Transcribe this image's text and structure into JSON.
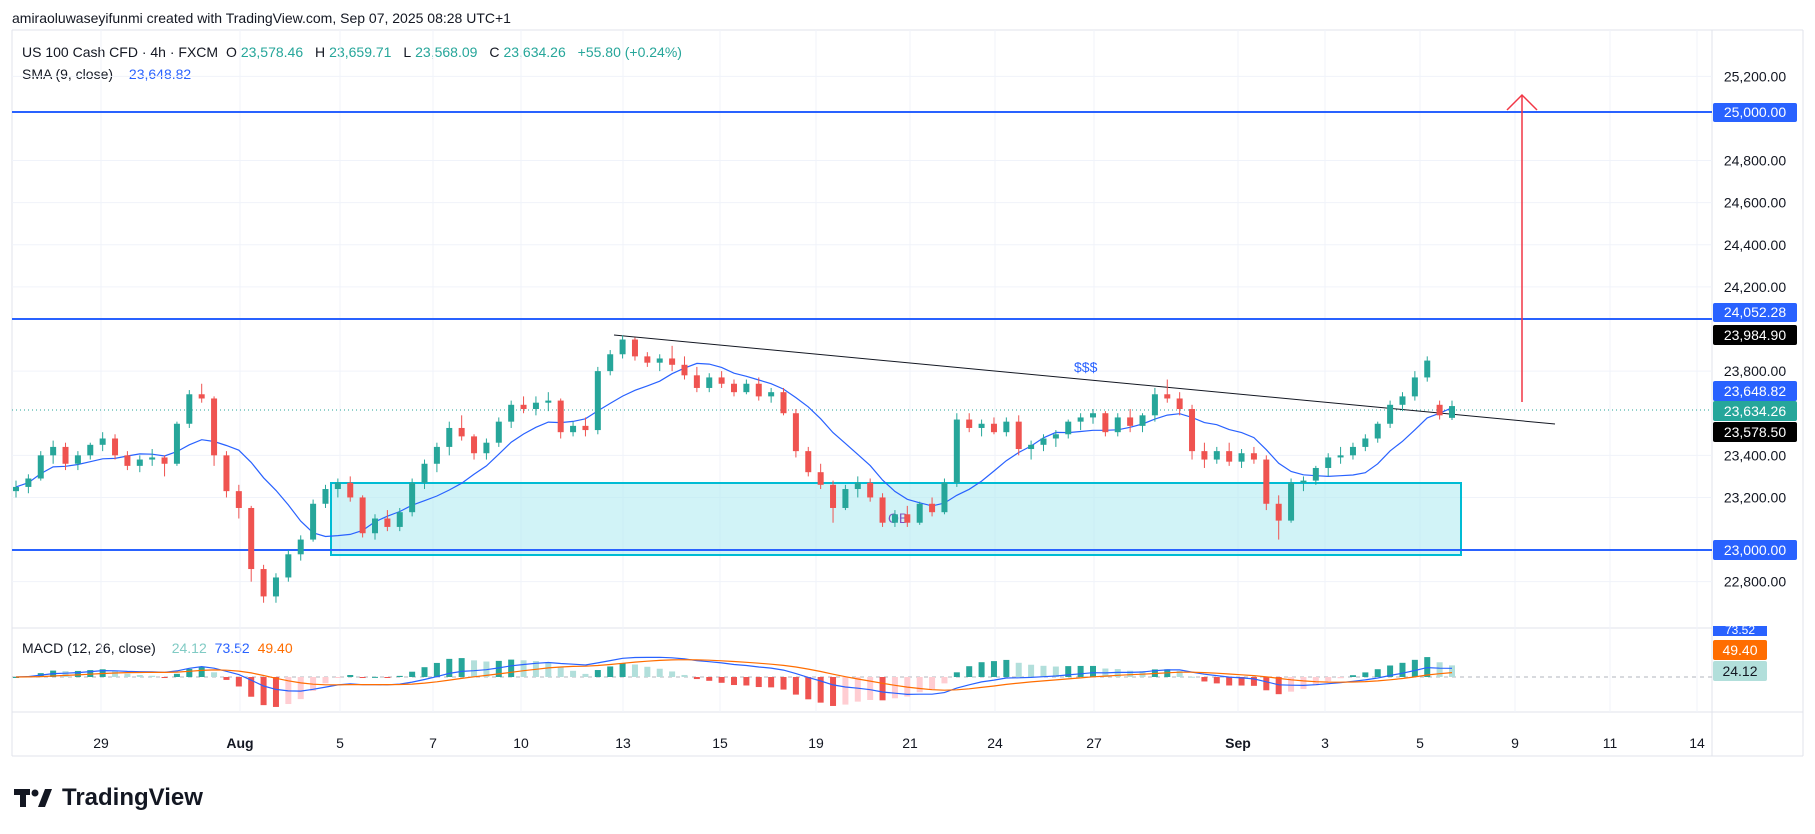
{
  "header": {
    "attribution": "amiraoluwaseyifunmi created with TradingView.com, Sep 07, 2025 08:28 UTC+1"
  },
  "symbol": {
    "name": "US 100 Cash CFD · 4h · FXCM",
    "o_label": "O",
    "o_value": "23,578.46",
    "h_label": "H",
    "h_value": "23,659.71",
    "l_label": "L",
    "l_value": "23,568.09",
    "c_label": "C",
    "c_value": "23,634.26",
    "change": "+55.80 (+0.24%)"
  },
  "sma": {
    "label": "SMA (9, close)",
    "value": "23,648.82"
  },
  "macd": {
    "label": "MACD (12, 26, close)",
    "hist": "24.12",
    "macd": "73.52",
    "signal": "49.40",
    "clipped_label": "73.52"
  },
  "annotations": {
    "liquidity": "$$$",
    "order_block": "OB"
  },
  "colors": {
    "up": "#26a69a",
    "down": "#ef5350",
    "level": "#2962ff",
    "sma": "#2962ff",
    "signal": "#ff6d00",
    "zone": "#b2ebf2",
    "zone_border": "#00bcd4",
    "arrow": "#f23645"
  },
  "price_labels": {
    "level_high": "25,000.00",
    "level_mid": "24,052.28",
    "high_marker": "23,984.90",
    "sma_marker": "23,648.82",
    "last_price": "23,634.26",
    "low_marker": "23,578.50",
    "level_low": "23,000.00"
  },
  "logo": {
    "text": "TradingView",
    "icon": "tradingview-logo-icon"
  },
  "chart_data": {
    "type": "candlestick",
    "yaxis": {
      "ticks": [
        "25,200.00",
        "24,800.00",
        "24,600.00",
        "24,400.00",
        "24,200.00",
        "23,800.00",
        "23,400.00",
        "23,200.00",
        "22,800.00"
      ],
      "ylim": [
        22580,
        25420
      ]
    },
    "xaxis": {
      "ticks": [
        "29",
        "Aug",
        "5",
        "7",
        "10",
        "13",
        "15",
        "19",
        "21",
        "24",
        "27",
        "Sep",
        "3",
        "5",
        "9",
        "11",
        "14"
      ]
    },
    "horizontal_levels": [
      25000,
      24052.28,
      23000
    ],
    "demand_zone": {
      "top": 23300,
      "bottom": 22980
    },
    "trendline": {
      "from": [
        23975
      ],
      "to": [
        23600
      ]
    },
    "target_arrow": {
      "from": 23650,
      "to": 25080
    },
    "candles": [
      [
        23230,
        23280,
        23200,
        23250
      ],
      [
        23250,
        23310,
        23220,
        23290
      ],
      [
        23290,
        23420,
        23280,
        23400
      ],
      [
        23400,
        23470,
        23360,
        23440
      ],
      [
        23440,
        23460,
        23330,
        23360
      ],
      [
        23360,
        23420,
        23330,
        23400
      ],
      [
        23400,
        23460,
        23380,
        23450
      ],
      [
        23450,
        23510,
        23420,
        23480
      ],
      [
        23480,
        23500,
        23380,
        23400
      ],
      [
        23400,
        23420,
        23330,
        23350
      ],
      [
        23350,
        23400,
        23320,
        23380
      ],
      [
        23380,
        23430,
        23350,
        23390
      ],
      [
        23390,
        23400,
        23300,
        23360
      ],
      [
        23360,
        23560,
        23350,
        23550
      ],
      [
        23550,
        23710,
        23530,
        23690
      ],
      [
        23690,
        23740,
        23650,
        23670
      ],
      [
        23670,
        23680,
        23350,
        23400
      ],
      [
        23400,
        23420,
        23200,
        23230
      ],
      [
        23230,
        23260,
        23100,
        23150
      ],
      [
        23150,
        23160,
        22800,
        22860
      ],
      [
        22860,
        22880,
        22700,
        22730
      ],
      [
        22730,
        22840,
        22700,
        22820
      ],
      [
        22820,
        22950,
        22800,
        22930
      ],
      [
        22930,
        23020,
        22900,
        23000
      ],
      [
        23000,
        23190,
        22990,
        23170
      ],
      [
        23170,
        23260,
        23150,
        23240
      ],
      [
        23240,
        23290,
        23200,
        23270
      ],
      [
        23270,
        23300,
        23180,
        23200
      ],
      [
        23200,
        23210,
        23010,
        23030
      ],
      [
        23030,
        23120,
        23000,
        23100
      ],
      [
        23100,
        23140,
        23040,
        23060
      ],
      [
        23060,
        23150,
        23040,
        23130
      ],
      [
        23130,
        23290,
        23110,
        23270
      ],
      [
        23270,
        23380,
        23240,
        23360
      ],
      [
        23360,
        23460,
        23320,
        23440
      ],
      [
        23440,
        23560,
        23400,
        23530
      ],
      [
        23530,
        23590,
        23470,
        23490
      ],
      [
        23490,
        23500,
        23380,
        23410
      ],
      [
        23410,
        23480,
        23380,
        23460
      ],
      [
        23460,
        23580,
        23440,
        23560
      ],
      [
        23560,
        23660,
        23530,
        23640
      ],
      [
        23640,
        23680,
        23600,
        23620
      ],
      [
        23620,
        23680,
        23590,
        23650
      ],
      [
        23650,
        23700,
        23610,
        23660
      ],
      [
        23660,
        23670,
        23480,
        23510
      ],
      [
        23510,
        23560,
        23490,
        23540
      ],
      [
        23540,
        23580,
        23490,
        23520
      ],
      [
        23520,
        23820,
        23500,
        23800
      ],
      [
        23800,
        23900,
        23780,
        23880
      ],
      [
        23880,
        23970,
        23860,
        23950
      ],
      [
        23950,
        23960,
        23850,
        23870
      ],
      [
        23870,
        23890,
        23820,
        23840
      ],
      [
        23840,
        23880,
        23800,
        23860
      ],
      [
        23860,
        23920,
        23800,
        23830
      ],
      [
        23830,
        23870,
        23760,
        23780
      ],
      [
        23780,
        23820,
        23700,
        23720
      ],
      [
        23720,
        23790,
        23700,
        23770
      ],
      [
        23770,
        23800,
        23720,
        23740
      ],
      [
        23740,
        23760,
        23680,
        23700
      ],
      [
        23700,
        23760,
        23690,
        23740
      ],
      [
        23740,
        23770,
        23660,
        23680
      ],
      [
        23680,
        23720,
        23650,
        23700
      ],
      [
        23700,
        23720,
        23590,
        23600
      ],
      [
        23600,
        23620,
        23390,
        23420
      ],
      [
        23420,
        23440,
        23300,
        23320
      ],
      [
        23320,
        23360,
        23240,
        23260
      ],
      [
        23260,
        23280,
        23080,
        23150
      ],
      [
        23150,
        23260,
        23140,
        23240
      ],
      [
        23240,
        23300,
        23200,
        23270
      ],
      [
        23270,
        23290,
        23180,
        23200
      ],
      [
        23200,
        23220,
        23060,
        23080
      ],
      [
        23080,
        23140,
        23060,
        23120
      ],
      [
        23120,
        23160,
        23060,
        23080
      ],
      [
        23080,
        23180,
        23070,
        23170
      ],
      [
        23170,
        23200,
        23110,
        23130
      ],
      [
        23130,
        23290,
        23120,
        23270
      ],
      [
        23270,
        23600,
        23250,
        23570
      ],
      [
        23570,
        23600,
        23510,
        23530
      ],
      [
        23530,
        23570,
        23490,
        23550
      ],
      [
        23550,
        23580,
        23500,
        23510
      ],
      [
        23510,
        23580,
        23490,
        23560
      ],
      [
        23560,
        23590,
        23400,
        23430
      ],
      [
        23430,
        23470,
        23380,
        23450
      ],
      [
        23450,
        23500,
        23420,
        23480
      ],
      [
        23480,
        23520,
        23440,
        23500
      ],
      [
        23500,
        23570,
        23480,
        23560
      ],
      [
        23560,
        23600,
        23520,
        23580
      ],
      [
        23580,
        23620,
        23550,
        23600
      ],
      [
        23600,
        23610,
        23490,
        23510
      ],
      [
        23510,
        23600,
        23490,
        23580
      ],
      [
        23580,
        23620,
        23510,
        23540
      ],
      [
        23540,
        23600,
        23510,
        23590
      ],
      [
        23590,
        23720,
        23560,
        23690
      ],
      [
        23690,
        23760,
        23650,
        23670
      ],
      [
        23670,
        23700,
        23590,
        23620
      ],
      [
        23620,
        23640,
        23380,
        23420
      ],
      [
        23420,
        23460,
        23340,
        23380
      ],
      [
        23380,
        23440,
        23360,
        23420
      ],
      [
        23420,
        23460,
        23350,
        23370
      ],
      [
        23370,
        23430,
        23340,
        23410
      ],
      [
        23410,
        23440,
        23360,
        23380
      ],
      [
        23380,
        23400,
        23140,
        23170
      ],
      [
        23170,
        23210,
        23000,
        23090
      ],
      [
        23090,
        23290,
        23080,
        23270
      ],
      [
        23270,
        23300,
        23230,
        23280
      ],
      [
        23280,
        23350,
        23260,
        23340
      ],
      [
        23340,
        23410,
        23300,
        23390
      ],
      [
        23390,
        23440,
        23360,
        23400
      ],
      [
        23400,
        23460,
        23380,
        23440
      ],
      [
        23440,
        23500,
        23420,
        23480
      ],
      [
        23480,
        23560,
        23460,
        23550
      ],
      [
        23550,
        23660,
        23530,
        23640
      ],
      [
        23640,
        23700,
        23610,
        23680
      ],
      [
        23680,
        23800,
        23660,
        23770
      ],
      [
        23770,
        23870,
        23750,
        23850
      ],
      [
        23640,
        23660,
        23570,
        23590
      ],
      [
        23578,
        23660,
        23568,
        23634
      ]
    ]
  }
}
